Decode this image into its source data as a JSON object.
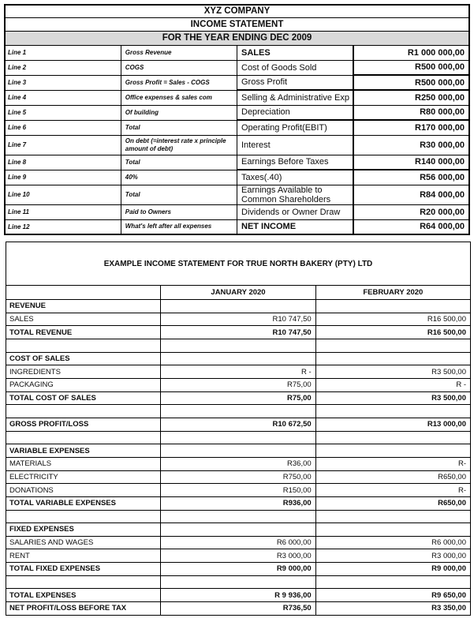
{
  "table1": {
    "title": "XYZ COMPANY",
    "subtitle": "INCOME STATEMENT",
    "period": "FOR THE YEAR ENDING DEC 2009",
    "rows": [
      {
        "line": "Line 1",
        "note": "Gross Revenue",
        "item": "SALES",
        "amount": "R1 000 000,00",
        "item_bold": true,
        "thick": "none"
      },
      {
        "line": "Line 2",
        "note": "COGS",
        "item": "Cost of Goods Sold",
        "amount": "R500 000,00",
        "item_bold": false,
        "thick": "amount"
      },
      {
        "line": "Line 3",
        "note": "Gross Profit = Sales - COGS",
        "item": "Gross Profit",
        "amount": "R500 000,00",
        "item_bold": false,
        "thick": "both"
      },
      {
        "line": "Line 4",
        "note": "Office expenses & sales com",
        "item": "Selling & Administrative Exp",
        "amount": "R250 000,00",
        "item_bold": false,
        "thick": "none"
      },
      {
        "line": "Line 5",
        "note": "Of building",
        "item": "Depreciation",
        "amount": "R80 000,00",
        "item_bold": false,
        "thick": "both"
      },
      {
        "line": "Line 6",
        "note": "Total",
        "item": "Operating Profit(EBIT)",
        "amount": "R170 000,00",
        "item_bold": false,
        "thick": "none"
      },
      {
        "line": "Line 7",
        "note": "On debt (=interest rate x principle amount of debt)",
        "item": "Interest",
        "amount": "R30 000,00",
        "item_bold": false,
        "thick": "none",
        "tall": true
      },
      {
        "line": "Line 8",
        "note": "Total",
        "item": "Earnings Before Taxes",
        "amount": "R140 000,00",
        "item_bold": false,
        "thick": "both"
      },
      {
        "line": "Line 9",
        "note": "40%",
        "item": "Taxes(.40)",
        "amount": "R56 000,00",
        "item_bold": false,
        "thick": "none"
      },
      {
        "line": "Line 10",
        "note": "Total",
        "item": "Earnings Available to Common Shareholders",
        "amount": "R84 000,00",
        "item_bold": false,
        "thick": "none"
      },
      {
        "line": "Line 11",
        "note": "Paid to Owners",
        "item": "Dividends or Owner Draw",
        "amount": "R20 000,00",
        "item_bold": false,
        "thick": "none"
      },
      {
        "line": "Line 12",
        "note": "What's left after all expenses",
        "item": "NET INCOME",
        "amount": "R64 000,00",
        "item_bold": true,
        "thick": "none"
      }
    ]
  },
  "table2": {
    "title": "EXAMPLE INCOME STATEMENT FOR TRUE NORTH BAKERY (PTY) LTD",
    "col_jan": "JANUARY 2020",
    "col_feb": "FEBRUARY 2020",
    "rows": [
      {
        "label": "REVENUE",
        "jan": "",
        "feb": "",
        "bold": true
      },
      {
        "label": "SALES",
        "jan": "R10 747,50",
        "feb": "R16 500,00",
        "bold": false
      },
      {
        "label": "TOTAL REVENUE",
        "jan": "R10 747,50",
        "feb": "R16 500,00",
        "bold": true
      },
      {
        "label": "",
        "jan": "",
        "feb": "",
        "bold": false
      },
      {
        "label": "COST OF SALES",
        "jan": "",
        "feb": "",
        "bold": true
      },
      {
        "label": "INGREDIENTS",
        "jan": "R -",
        "feb": "R3 500,00",
        "bold": false
      },
      {
        "label": "PACKAGING",
        "jan": "R75,00",
        "feb": "R -",
        "bold": false
      },
      {
        "label": "TOTAL COST OF SALES",
        "jan": "R75,00",
        "feb": "R3 500,00",
        "bold": true
      },
      {
        "label": "",
        "jan": "",
        "feb": "",
        "bold": false
      },
      {
        "label": "GROSS PROFIT/LOSS",
        "jan": "R10 672,50",
        "feb": "R13 000,00",
        "bold": true
      },
      {
        "label": "",
        "jan": "",
        "feb": "",
        "bold": false
      },
      {
        "label": "VARIABLE EXPENSES",
        "jan": "",
        "feb": "",
        "bold": true
      },
      {
        "label": "MATERIALS",
        "jan": "R36,00",
        "feb": "R-",
        "bold": false
      },
      {
        "label": "ELECTRICITY",
        "jan": "R750,00",
        "feb": "R650,00",
        "bold": false
      },
      {
        "label": "DONATIONS",
        "jan": "R150,00",
        "feb": "R-",
        "bold": false
      },
      {
        "label": "TOTAL VARIABLE EXPENSES",
        "jan": "R936,00",
        "feb": "R650,00",
        "bold": true
      },
      {
        "label": "",
        "jan": "",
        "feb": "",
        "bold": false
      },
      {
        "label": "FIXED EXPENSES",
        "jan": "",
        "feb": "",
        "bold": true
      },
      {
        "label": "SALARIES AND WAGES",
        "jan": "R6 000,00",
        "feb": "R6 000,00",
        "bold": false
      },
      {
        "label": "RENT",
        "jan": "R3 000,00",
        "feb": "R3 000,00",
        "bold": false
      },
      {
        "label": "TOTAL FIXED EXPENSES",
        "jan": "R9 000,00",
        "feb": "R9 000,00",
        "bold": true
      },
      {
        "label": "",
        "jan": "",
        "feb": "",
        "bold": false
      },
      {
        "label": "TOTAL EXPENSES",
        "jan": "R 9 936,00",
        "feb": "R9 650,00",
        "bold": true
      },
      {
        "label": "NET PROFIT/LOSS BEFORE TAX",
        "jan": "R736,50",
        "feb": "R3 350,00",
        "bold": true
      }
    ]
  },
  "colors": {
    "header_band": "#d9d9d9",
    "border": "#000000",
    "text": "#0d0d0d"
  }
}
